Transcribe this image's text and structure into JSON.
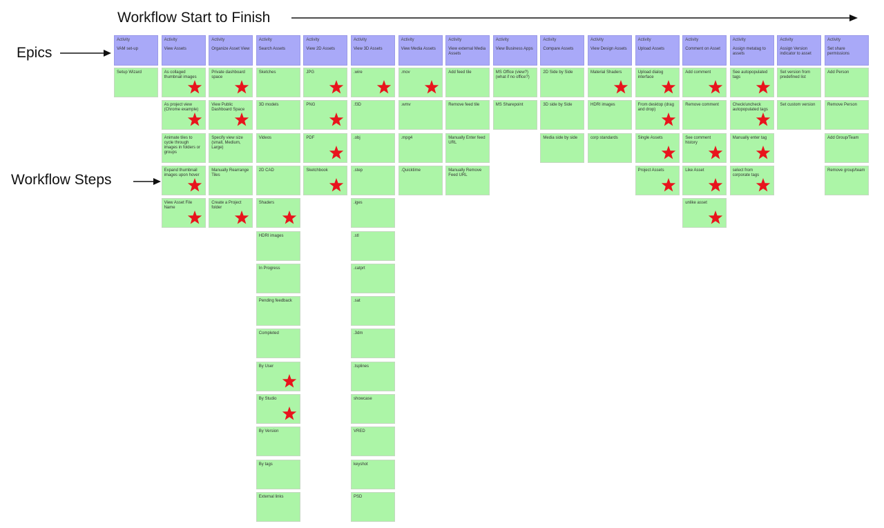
{
  "header": {
    "title": "Workflow Start to Finish"
  },
  "labels": {
    "epics": "Epics",
    "workflow_steps": "Workflow Steps"
  },
  "colors": {
    "epic": "#a9a9f8",
    "step": "#acf5a7",
    "star": "#e8141c"
  },
  "epic_tag": "Activity",
  "columns": [
    {
      "epic": "VAM set-up",
      "steps": [
        {
          "text": "Setup Wizard",
          "star": false
        }
      ]
    },
    {
      "epic": "View Assets",
      "steps": [
        {
          "text": "As collaged thumbnail images",
          "star": true
        },
        {
          "text": "As project view (Chrome example)",
          "star": true
        },
        {
          "text": "Animate tiles to cycle through images in folders or groups",
          "star": false
        },
        {
          "text": "Expand thumbnail images upon hover",
          "star": true
        },
        {
          "text": "View Asset File Name",
          "star": true
        }
      ]
    },
    {
      "epic": "Organize Asset View",
      "steps": [
        {
          "text": "Private dashboard space",
          "star": true
        },
        {
          "text": "View Public Dashboard Space",
          "star": true
        },
        {
          "text": "Specify view size (small, Medium, Large)",
          "star": false
        },
        {
          "text": "Manually Rearrange Tiles",
          "star": false
        },
        {
          "text": "Create a Project folder",
          "star": true
        }
      ]
    },
    {
      "epic": "Search Assets",
      "steps": [
        {
          "text": "Sketches",
          "star": false
        },
        {
          "text": "3D models",
          "star": false
        },
        {
          "text": "Videos",
          "star": false
        },
        {
          "text": "2D CAD",
          "star": false
        },
        {
          "text": "Shaders",
          "star": true
        },
        {
          "text": "HDRI images",
          "star": false
        },
        {
          "text": "In Progress",
          "star": false
        },
        {
          "text": "Pending feedback",
          "star": false
        },
        {
          "text": "Completed",
          "star": false
        },
        {
          "text": "By User",
          "star": true
        },
        {
          "text": "By Studio",
          "star": true
        },
        {
          "text": "By Version",
          "star": false
        },
        {
          "text": "By tags",
          "star": false
        },
        {
          "text": "External links",
          "star": false
        }
      ]
    },
    {
      "epic": "View 2D Assets",
      "steps": [
        {
          "text": "JPG",
          "star": true
        },
        {
          "text": "PNG",
          "star": true
        },
        {
          "text": "PDF",
          "star": true
        },
        {
          "text": "Sketchbook",
          "star": true
        }
      ]
    },
    {
      "epic": "View 3D Assets",
      "steps": [
        {
          "text": ".wire",
          "star": true
        },
        {
          "text": ".f3D",
          "star": false
        },
        {
          "text": ".obj",
          "star": false
        },
        {
          "text": ".step",
          "star": false
        },
        {
          "text": ".iges",
          "star": false
        },
        {
          "text": ".stl",
          "star": false
        },
        {
          "text": ".catprt",
          "star": false
        },
        {
          "text": ".sat",
          "star": false
        },
        {
          "text": ".3dm",
          "star": false
        },
        {
          "text": ".tsplines",
          "star": false
        },
        {
          "text": "showcase",
          "star": false
        },
        {
          "text": "VRED",
          "star": false
        },
        {
          "text": "keyshot",
          "star": false
        },
        {
          "text": "PSD",
          "star": false
        }
      ]
    },
    {
      "epic": "View Media Assets",
      "steps": [
        {
          "text": ".mov",
          "star": true
        },
        {
          "text": ".wmv",
          "star": false
        },
        {
          "text": ".mpg4",
          "star": false
        },
        {
          "text": ".Quicktime",
          "star": false
        }
      ]
    },
    {
      "epic": "View external Media Assets",
      "steps": [
        {
          "text": "Add feed tile",
          "star": false
        },
        {
          "text": "Remove feed tile",
          "star": false
        },
        {
          "text": "Manually Enter feed URL",
          "star": false
        },
        {
          "text": "Manually Remove Feed URL",
          "star": false
        }
      ]
    },
    {
      "epic": "View Business Apps",
      "steps": [
        {
          "text": "MS Office (view?) (what if no office?)",
          "star": false
        },
        {
          "text": "MS Sharepoint",
          "star": false
        }
      ]
    },
    {
      "epic": "Compare Assets",
      "steps": [
        {
          "text": "2D Side by Side",
          "star": false
        },
        {
          "text": "3D side by Side",
          "star": false
        },
        {
          "text": "Media side by side",
          "star": false
        }
      ]
    },
    {
      "epic": "View Design Assets",
      "steps": [
        {
          "text": "Material Shaders",
          "star": true
        },
        {
          "text": "HDRI images",
          "star": false
        },
        {
          "text": "corp standards",
          "star": false
        }
      ]
    },
    {
      "epic": "Upload Assets",
      "steps": [
        {
          "text": "Upload dialog interface",
          "star": true
        },
        {
          "text": "From desktop (drag and drop)",
          "star": true
        },
        {
          "text": "Single Assets",
          "star": true
        },
        {
          "text": "Project Assets",
          "star": true
        }
      ]
    },
    {
      "epic": "Comment on Asset",
      "steps": [
        {
          "text": "Add comment",
          "star": true
        },
        {
          "text": "Remove comment",
          "star": false
        },
        {
          "text": "See comment history",
          "star": true
        },
        {
          "text": "Like Asset",
          "star": true
        },
        {
          "text": "unlike asset",
          "star": true
        }
      ]
    },
    {
      "epic": "Assign metatag to assets",
      "steps": [
        {
          "text": "See autopopulated tags",
          "star": true
        },
        {
          "text": "Check/uncheck autopopulated tags",
          "star": true
        },
        {
          "text": "Manually enter tag",
          "star": true
        },
        {
          "text": "select from corporate tags",
          "star": true
        }
      ]
    },
    {
      "epic": "Assign Version indicator to asset",
      "steps": [
        {
          "text": "Set version from predefined list",
          "star": false
        },
        {
          "text": "Set custom version",
          "star": false
        }
      ]
    },
    {
      "epic": "Set share permissions",
      "steps": [
        {
          "text": "Add Person",
          "star": false
        },
        {
          "text": "Remove Person",
          "star": false
        },
        {
          "text": "Add Group/Team",
          "star": false
        },
        {
          "text": "Remove group/team",
          "star": false
        }
      ]
    }
  ]
}
